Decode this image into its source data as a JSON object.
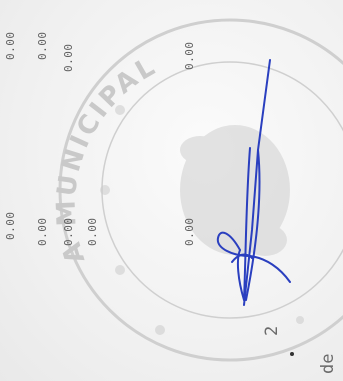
{
  "amounts": {
    "r1c1": "0.00",
    "r1c2": "0.00",
    "r1c3": "0.00",
    "r1c4": "0.00",
    "r2c1": "0.00",
    "r2c2": "0.00",
    "r2c3": "0.00",
    "r2c4": "0.00",
    "r2c5": "0.00"
  },
  "seal": {
    "text": "A MUNICIPAL"
  },
  "footer": {
    "page": "2",
    "of_word": "de"
  },
  "colors": {
    "ink": "#2a3fbf",
    "stamp": "#cfcfcf"
  }
}
